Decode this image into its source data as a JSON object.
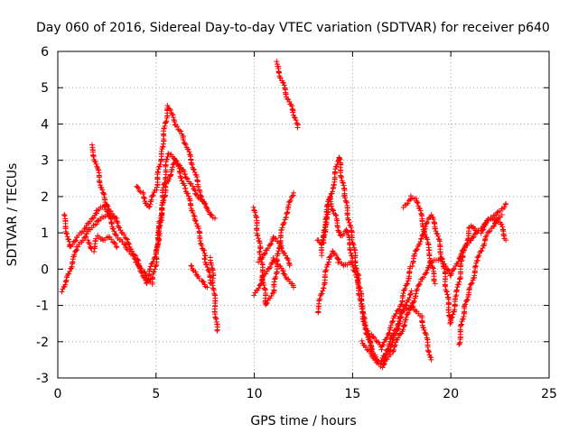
{
  "chart_data": {
    "type": "scatter",
    "title": "Day 060 of 2016, Sidereal Day-to-day VTEC variation (SDTVAR) for receiver p640",
    "xlabel": "GPS time / hours",
    "ylabel": "SDTVAR / TECUs",
    "xlim": [
      0,
      25
    ],
    "ylim": [
      -3,
      6
    ],
    "xticks": [
      0,
      5,
      10,
      15,
      20,
      25
    ],
    "yticks": [
      -3,
      -2,
      -1,
      0,
      1,
      2,
      3,
      4,
      5,
      6
    ],
    "grid": true,
    "marker": "+",
    "color": "#ff0000",
    "series": [
      {
        "name": "s1",
        "x": [
          0.2,
          0.5,
          1.0,
          1.5,
          2.0,
          2.5,
          3.0
        ],
        "y": [
          -0.6,
          -0.2,
          0.6,
          1.0,
          1.3,
          1.5,
          1.4
        ]
      },
      {
        "name": "s2",
        "x": [
          0.3,
          0.6,
          1.0,
          1.5,
          2.0,
          2.5,
          3.0,
          3.5,
          4.0,
          4.5,
          5.0,
          5.5,
          6.0,
          6.5,
          7.0,
          7.5
        ],
        "y": [
          1.5,
          0.6,
          0.9,
          1.2,
          1.6,
          1.8,
          1.3,
          0.8,
          0.3,
          -0.4,
          0.5,
          2.3,
          3.0,
          2.6,
          2.1,
          1.8
        ]
      },
      {
        "name": "s3",
        "x": [
          1.7,
          2.0,
          2.5,
          3.0,
          3.5,
          4.0,
          4.5,
          4.8,
          5.0,
          5.3,
          5.6,
          6.0,
          6.5,
          7.0,
          7.5,
          7.8
        ],
        "y": [
          3.4,
          2.8,
          1.6,
          0.9,
          0.6,
          0.2,
          -0.2,
          -0.4,
          0.2,
          1.8,
          3.2,
          3.0,
          2.2,
          1.4,
          0.3,
          -0.4
        ]
      },
      {
        "name": "s4",
        "x": [
          1.5,
          1.8,
          2.0,
          2.3,
          2.6,
          3.0
        ],
        "y": [
          0.8,
          0.5,
          0.9,
          0.8,
          0.9,
          0.6
        ]
      },
      {
        "name": "s5",
        "x": [
          4.0,
          4.3,
          4.6,
          5.0,
          5.3,
          5.6,
          6.0,
          6.4,
          6.8,
          7.2,
          7.6,
          8.0
        ],
        "y": [
          2.3,
          2.1,
          1.7,
          2.2,
          3.3,
          4.5,
          4.0,
          3.6,
          3.0,
          2.2,
          1.6,
          1.4
        ]
      },
      {
        "name": "s6",
        "x": [
          6.8,
          7.0,
          7.3,
          7.6
        ],
        "y": [
          0.1,
          -0.1,
          -0.3,
          -0.5
        ]
      },
      {
        "name": "s7",
        "x": [
          7.8,
          7.9,
          8.0,
          8.1
        ],
        "y": [
          0.3,
          -0.3,
          -1.0,
          -1.7
        ]
      },
      {
        "name": "s8",
        "x": [
          10.0,
          10.3,
          10.6,
          11.0,
          11.3,
          11.6,
          12.0
        ],
        "y": [
          1.7,
          0.5,
          -1.0,
          -0.6,
          0.8,
          1.5,
          2.1
        ]
      },
      {
        "name": "s9",
        "x": [
          10.0,
          10.5,
          11.0,
          11.5,
          12.0
        ],
        "y": [
          -0.7,
          -0.2,
          0.3,
          -0.1,
          -0.5
        ]
      },
      {
        "name": "s10",
        "x": [
          10.2,
          10.6,
          11.0,
          11.4,
          11.8
        ],
        "y": [
          0.2,
          0.5,
          0.9,
          0.6,
          0.1
        ]
      },
      {
        "name": "s11",
        "x": [
          11.1,
          11.4,
          11.7,
          12.0,
          12.2
        ],
        "y": [
          5.7,
          5.2,
          4.7,
          4.3,
          3.9
        ]
      },
      {
        "name": "s12",
        "x": [
          13.2,
          13.5,
          13.8,
          14.0,
          14.3,
          14.6,
          15.0,
          15.3,
          15.6,
          16.0,
          16.4,
          16.8,
          17.2,
          17.6,
          18.0
        ],
        "y": [
          -1.2,
          -0.5,
          0.3,
          0.5,
          0.2,
          0.1,
          0.2,
          -0.5,
          -1.5,
          -2.3,
          -2.6,
          -2.3,
          -1.8,
          -1.1,
          -0.6
        ]
      },
      {
        "name": "s13",
        "x": [
          13.4,
          13.7,
          14.0,
          14.3,
          14.6,
          15.0,
          15.3,
          15.6,
          16.0
        ],
        "y": [
          0.4,
          1.5,
          2.3,
          3.1,
          2.0,
          0.8,
          -0.3,
          -1.4,
          -2.2
        ]
      },
      {
        "name": "s14",
        "x": [
          13.2,
          13.5,
          13.8,
          14.1,
          14.4,
          14.7,
          15.0
        ],
        "y": [
          0.8,
          0.7,
          2.0,
          1.5,
          0.9,
          1.1,
          0.3
        ]
      },
      {
        "name": "s15",
        "x": [
          15.5,
          16.0,
          16.5,
          17.0,
          17.5,
          18.0,
          18.5,
          19.0,
          19.5,
          20.0,
          20.5,
          21.0,
          21.5,
          22.0,
          22.5,
          22.8
        ],
        "y": [
          -2.0,
          -2.4,
          -2.7,
          -2.3,
          -1.7,
          -1.0,
          -0.3,
          0.2,
          0.3,
          -0.2,
          0.4,
          0.8,
          1.1,
          1.4,
          1.6,
          1.8
        ]
      },
      {
        "name": "s16",
        "x": [
          16.0,
          16.5,
          17.0,
          17.5,
          18.0,
          18.5,
          19.0,
          19.3,
          19.6,
          20.0,
          20.3,
          20.6,
          21.0,
          21.5,
          22.0,
          22.5,
          22.8
        ],
        "y": [
          -1.8,
          -2.2,
          -1.5,
          -0.9,
          0.1,
          0.9,
          1.5,
          1.0,
          0.2,
          -1.5,
          -0.7,
          0.3,
          1.2,
          1.0,
          1.4,
          1.3,
          0.8
        ]
      },
      {
        "name": "s17",
        "x": [
          16.5,
          17.0,
          17.5,
          18.0,
          18.5,
          19.0
        ],
        "y": [
          -2.5,
          -1.9,
          -1.2,
          -1.0,
          -1.3,
          -2.5
        ]
      },
      {
        "name": "s18",
        "x": [
          17.6,
          18.0,
          18.3,
          18.6,
          18.9,
          19.2
        ],
        "y": [
          1.7,
          2.0,
          1.9,
          1.2,
          0.5,
          -0.4
        ]
      },
      {
        "name": "s19",
        "x": [
          20.4,
          20.7,
          21.0,
          21.4,
          21.8,
          22.2,
          22.6
        ],
        "y": [
          -2.1,
          -1.0,
          -0.5,
          0.3,
          0.9,
          1.2,
          1.5
        ]
      }
    ]
  }
}
